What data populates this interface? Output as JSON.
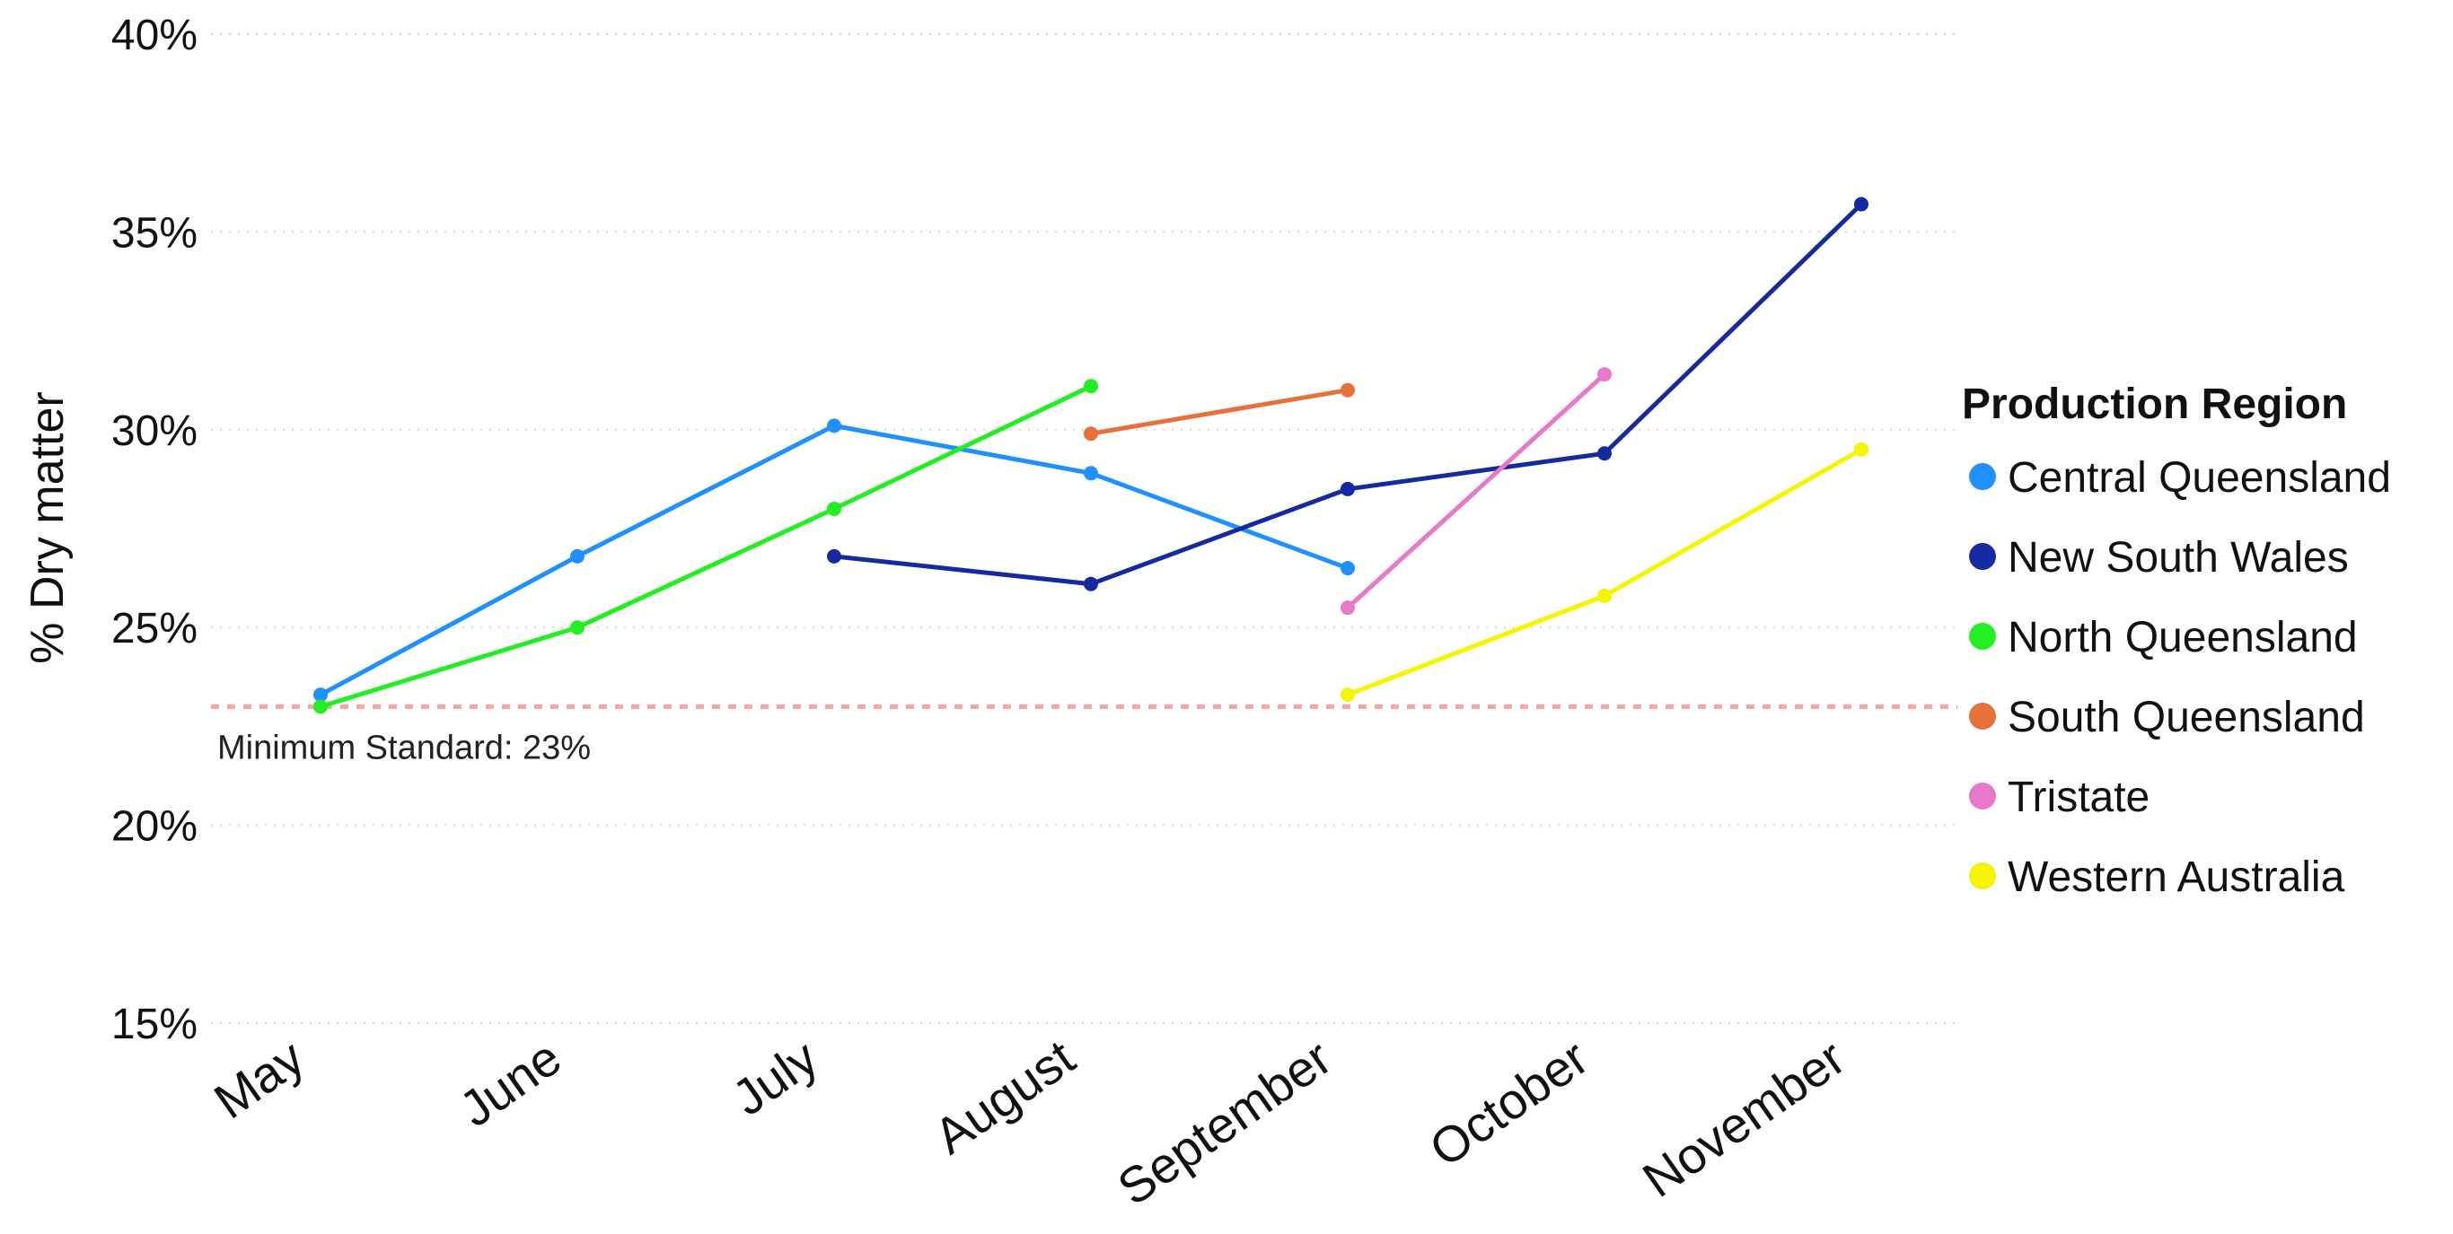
{
  "chart_data": {
    "type": "line",
    "ylabel": "% Dry matter",
    "xlabel": "",
    "categories": [
      "May",
      "June",
      "July",
      "August",
      "September",
      "October",
      "November"
    ],
    "y_ticks": [
      "15%",
      "20%",
      "25%",
      "30%",
      "35%",
      "40%"
    ],
    "y_tick_values": [
      15,
      20,
      25,
      30,
      35,
      40
    ],
    "ylim": [
      15,
      40
    ],
    "grid": "horizontal dotted",
    "legend": {
      "title": "Production Region",
      "placement": "right"
    },
    "reference_line": {
      "value": 23,
      "label": "Minimum Standard: 23%",
      "color": "#f4a6a6",
      "style": "dashed"
    },
    "series": [
      {
        "name": "Central Queensland",
        "color": "#1e90ff",
        "values": [
          23.3,
          26.8,
          30.1,
          28.9,
          26.5,
          null,
          null
        ]
      },
      {
        "name": "New South Wales",
        "color": "#1529a0",
        "values": [
          null,
          null,
          26.8,
          26.1,
          28.5,
          29.4,
          35.7
        ]
      },
      {
        "name": "North Queensland",
        "color": "#22ee22",
        "values": [
          23.0,
          25.0,
          28.0,
          31.1,
          null,
          null,
          null
        ]
      },
      {
        "name": "South Queensland",
        "color": "#e8703a",
        "values": [
          null,
          null,
          null,
          29.9,
          31.0,
          null,
          null
        ]
      },
      {
        "name": "Tristate",
        "color": "#e878c8",
        "values": [
          null,
          null,
          null,
          null,
          25.5,
          31.4,
          null
        ]
      },
      {
        "name": "Western Australia",
        "color": "#f5f500",
        "values": [
          null,
          null,
          null,
          null,
          23.3,
          25.8,
          29.5
        ]
      }
    ]
  }
}
